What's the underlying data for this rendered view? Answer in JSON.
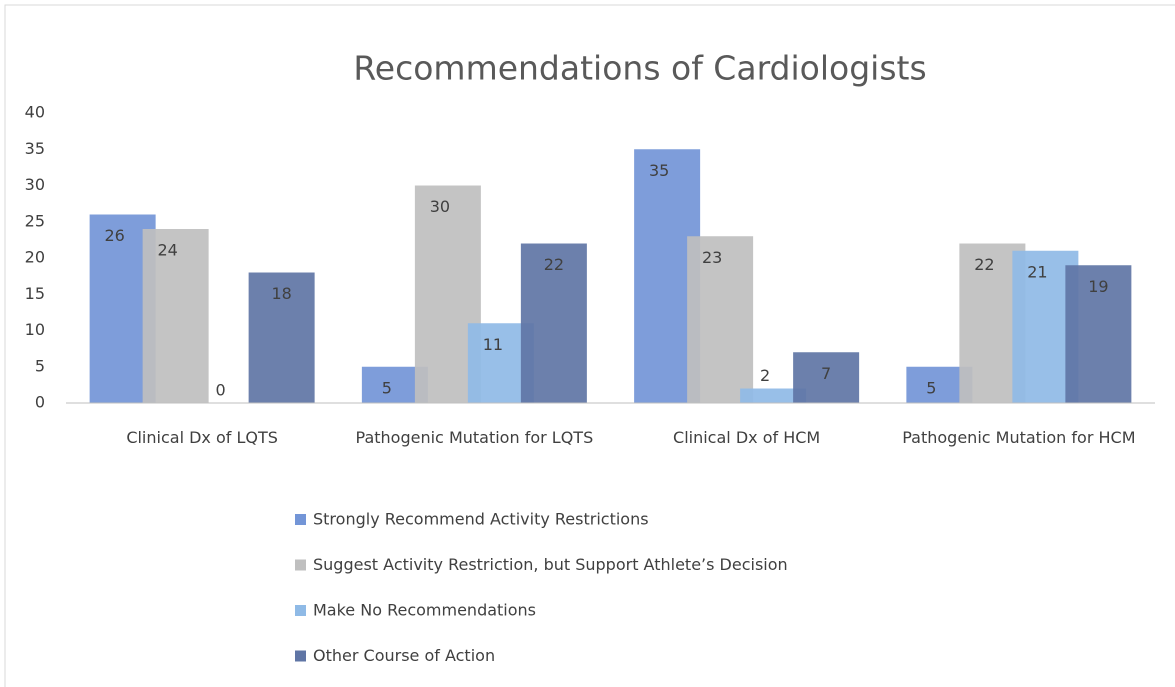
{
  "chart_data": {
    "type": "bar",
    "title": "Recommendations of Cardiologists",
    "categories": [
      "Clinical Dx of LQTS",
      "Pathogenic Mutation for LQTS",
      "Clinical Dx of HCM",
      "Pathogenic Mutation for HCM"
    ],
    "series": [
      {
        "name": "Strongly Recommend Activity Restrictions",
        "color": "#7395d7",
        "values": [
          26,
          5,
          35,
          5
        ]
      },
      {
        "name": "Suggest Activity Restriction, but Support  Athlete’s Decision",
        "color": "#bfbfbf",
        "values": [
          24,
          30,
          23,
          22
        ]
      },
      {
        "name": "Make No Recommendations",
        "color": "#8fbae6",
        "values": [
          0,
          11,
          2,
          21
        ]
      },
      {
        "name": "Other Course of Action",
        "color": "#5f75a5",
        "values": [
          18,
          22,
          7,
          19
        ]
      }
    ],
    "ylim": [
      0,
      40
    ],
    "yticks": [
      0,
      5,
      10,
      15,
      20,
      25,
      30,
      35,
      40
    ],
    "legend": "bottom"
  }
}
